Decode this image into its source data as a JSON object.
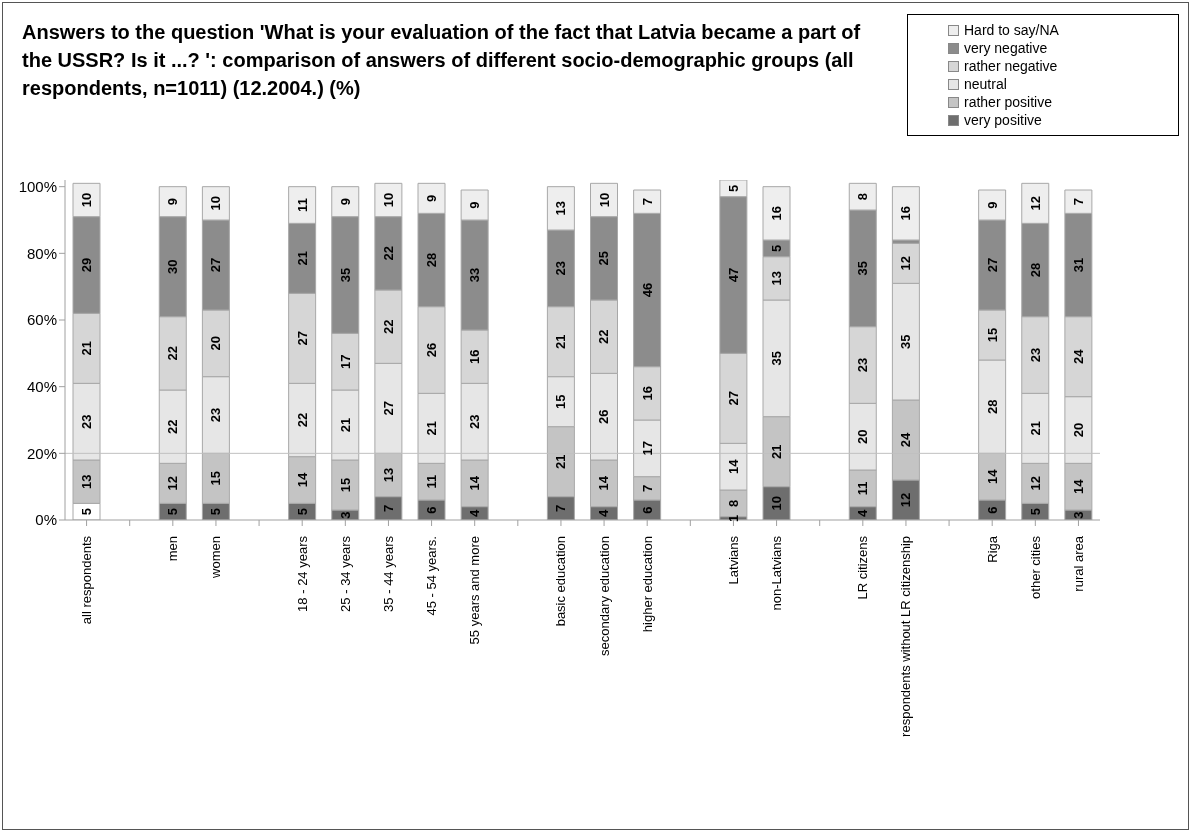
{
  "chart_data": {
    "type": "bar",
    "stacked": true,
    "title": "Answers to the question 'What is your evaluation of the fact that Latvia became a part of the USSR?  Is it ...? ': comparison of answers of different socio-demographic groups (all respondents, n=1011) (12.2004.) (%)",
    "categories": [
      "all respondents",
      null,
      "men",
      "women",
      null,
      "18 - 24 years",
      "25 - 34 years",
      "35 - 44 years",
      "45 - 54 years.",
      "55 years and more",
      null,
      "basic education",
      "secondary education",
      "higher education",
      null,
      "Latvians",
      "non-Latvians",
      null,
      "LR citizens",
      "respondents without LR citizenship",
      null,
      "Riga",
      "other cities",
      "rural area"
    ],
    "series": [
      {
        "name": "very positive",
        "color": "#6e6e6e",
        "colors": [
          "#ffffff",
          null,
          "#6e6e6e",
          "#6e6e6e",
          null,
          "#6e6e6e",
          "#6e6e6e",
          "#6e6e6e",
          "#6e6e6e",
          "#6e6e6e",
          null,
          "#6e6e6e",
          "#6e6e6e",
          "#6e6e6e",
          null,
          "#6e6e6e",
          "#6e6e6e",
          null,
          "#6e6e6e",
          "#6e6e6e",
          null,
          "#6e6e6e",
          "#6e6e6e",
          "#6e6e6e"
        ],
        "values": [
          5,
          null,
          5,
          5,
          null,
          5,
          3,
          7,
          6,
          4,
          null,
          7,
          4,
          6,
          null,
          1,
          10,
          null,
          4,
          12,
          null,
          6,
          5,
          3
        ],
        "value_labels": [
          "5",
          null,
          "5",
          "5",
          null,
          "5",
          "3",
          "7",
          "6",
          "4",
          null,
          "7",
          "4",
          "6",
          null,
          "1",
          "10",
          null,
          "4",
          "12",
          null,
          "6",
          "5",
          "3"
        ]
      },
      {
        "name": "rather positive",
        "color": "#c4c4c4",
        "values": [
          13,
          null,
          12,
          15,
          null,
          14,
          15,
          13,
          11,
          14,
          null,
          21,
          14,
          7,
          null,
          8,
          21,
          null,
          11,
          24,
          null,
          14,
          12,
          14
        ],
        "value_labels": [
          "13",
          null,
          "12",
          "15",
          null,
          "14",
          "15",
          "13",
          "11",
          "14",
          null,
          "21",
          "14",
          "7",
          null,
          "8",
          "21",
          null,
          "11",
          "24",
          null,
          "14",
          "12",
          "14"
        ]
      },
      {
        "name": "neutral",
        "color": "#e6e6e6",
        "values": [
          23,
          null,
          22,
          23,
          null,
          22,
          21,
          27,
          21,
          23,
          null,
          15,
          26,
          17,
          null,
          14,
          35,
          null,
          20,
          35,
          null,
          28,
          21,
          20
        ],
        "value_labels": [
          "23",
          null,
          "22",
          "23",
          null,
          "22",
          "21",
          "27",
          "21",
          "23",
          null,
          "15",
          "26",
          "17",
          null,
          "14",
          "35",
          null,
          "20",
          "35",
          null,
          "28",
          "21",
          "20"
        ]
      },
      {
        "name": "rather negative",
        "color": "#d6d6d6",
        "values": [
          21,
          null,
          22,
          20,
          null,
          27,
          17,
          22,
          26,
          16,
          null,
          21,
          22,
          16,
          null,
          27,
          13,
          null,
          23,
          12,
          null,
          15,
          23,
          24
        ],
        "value_labels": [
          "21",
          null,
          "22",
          "20",
          null,
          "27",
          "17",
          "22",
          "26",
          "16",
          null,
          "21",
          "22",
          "16",
          null,
          "27",
          "13",
          null,
          "23",
          "12",
          null,
          "15",
          "23",
          "24"
        ]
      },
      {
        "name": "very negative",
        "color": "#8c8c8c",
        "values": [
          29,
          null,
          30,
          27,
          null,
          21,
          35,
          22,
          28,
          33,
          null,
          23,
          25,
          46,
          null,
          47,
          5,
          null,
          35,
          1,
          null,
          27,
          28,
          31
        ],
        "value_labels": [
          "29",
          null,
          "30",
          "27",
          null,
          "21",
          "35",
          "22",
          "28",
          "33",
          null,
          "23",
          "25",
          "46",
          null,
          "47",
          "5",
          null,
          "35",
          null,
          null,
          "27",
          "28",
          "31"
        ]
      },
      {
        "name": "Hard to say/NA",
        "color": "#eeeeee",
        "values": [
          10,
          null,
          9,
          10,
          null,
          11,
          9,
          10,
          9,
          9,
          null,
          13,
          10,
          7,
          null,
          5,
          16,
          null,
          8,
          16,
          null,
          9,
          12,
          7
        ],
        "value_labels": [
          "10",
          null,
          "9",
          "10",
          null,
          "11",
          "9",
          "10",
          "9",
          "9",
          null,
          "13",
          "10",
          "7",
          null,
          "5",
          "16",
          null,
          "8",
          "16",
          null,
          "9",
          "12",
          "7"
        ]
      }
    ],
    "ylim": [
      0,
      102
    ],
    "yticks": [
      {
        "value": 0,
        "label": "0%"
      },
      {
        "value": 20,
        "label": "20%"
      },
      {
        "value": 40,
        "label": "40%"
      },
      {
        "value": 60,
        "label": "60%"
      },
      {
        "value": 80,
        "label": "80%"
      },
      {
        "value": 100,
        "label": "100%"
      }
    ],
    "ref_lines": [
      {
        "axis": "y",
        "value": 20,
        "color": "#c0c0c0"
      }
    ],
    "legend": "top right"
  }
}
